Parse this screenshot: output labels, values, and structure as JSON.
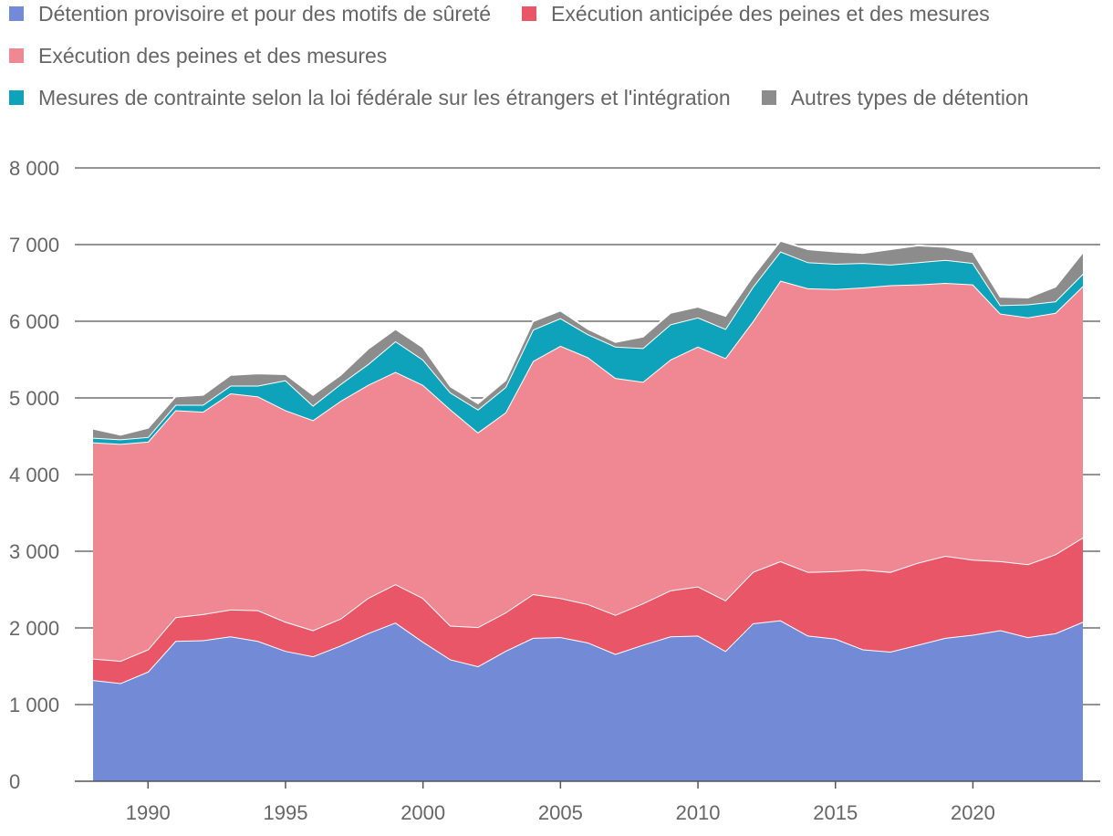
{
  "chart_data": {
    "type": "area",
    "stacked": true,
    "title": "",
    "xlabel": "",
    "ylabel": "",
    "ylim": [
      0,
      8000
    ],
    "yticks": [
      0,
      1000,
      2000,
      3000,
      4000,
      5000,
      6000,
      7000,
      8000
    ],
    "ytick_labels": [
      "0",
      "1 000",
      "2 000",
      "3 000",
      "4 000",
      "5 000",
      "6 000",
      "7 000",
      "8 000"
    ],
    "xlim": [
      1988,
      2024
    ],
    "xticks": [
      1990,
      1995,
      2000,
      2005,
      2010,
      2015,
      2020
    ],
    "xtick_labels": [
      "1990",
      "1995",
      "2000",
      "2005",
      "2010",
      "2015",
      "2020"
    ],
    "x": [
      1988,
      1989,
      1990,
      1991,
      1992,
      1993,
      1994,
      1995,
      1996,
      1997,
      1998,
      1999,
      2000,
      2001,
      2002,
      2003,
      2004,
      2005,
      2006,
      2007,
      2008,
      2009,
      2010,
      2011,
      2012,
      2013,
      2014,
      2015,
      2016,
      2017,
      2018,
      2019,
      2020,
      2021,
      2022,
      2023,
      2024
    ],
    "legend_position": "top",
    "series": [
      {
        "name": "Détention provisoire et pour des motifs de sûreté",
        "color": "#738bd6",
        "values": [
          1320,
          1280,
          1430,
          1830,
          1840,
          1890,
          1830,
          1700,
          1630,
          1770,
          1930,
          2070,
          1820,
          1590,
          1500,
          1700,
          1870,
          1880,
          1810,
          1660,
          1780,
          1890,
          1900,
          1700,
          2060,
          2100,
          1900,
          1860,
          1720,
          1690,
          1780,
          1870,
          1910,
          1970,
          1880,
          1930,
          2080
        ]
      },
      {
        "name": "Exécution anticipée des peines et des mesures",
        "color": "#e85668",
        "values": [
          280,
          290,
          290,
          310,
          340,
          350,
          400,
          380,
          340,
          350,
          460,
          500,
          570,
          440,
          510,
          500,
          570,
          510,
          500,
          510,
          540,
          600,
          640,
          660,
          670,
          770,
          830,
          880,
          1040,
          1040,
          1070,
          1070,
          980,
          900,
          950,
          1030,
          1100
        ]
      },
      {
        "name": "Exécution des peines et des mesures",
        "color": "#ef8893",
        "values": [
          2820,
          2830,
          2710,
          2700,
          2640,
          2820,
          2790,
          2760,
          2740,
          2840,
          2780,
          2770,
          2780,
          2820,
          2540,
          2610,
          3040,
          3290,
          3220,
          3090,
          2890,
          3010,
          3130,
          3160,
          3270,
          3660,
          3700,
          3680,
          3680,
          3740,
          3630,
          3560,
          3590,
          3230,
          3220,
          3150,
          3280
        ]
      },
      {
        "name": "Mesures de contrainte selon la loi fédérale sur les étrangers et l'intégration",
        "color": "#0fa2bb",
        "values": [
          60,
          60,
          60,
          70,
          90,
          100,
          140,
          390,
          190,
          220,
          270,
          400,
          330,
          220,
          300,
          330,
          410,
          360,
          300,
          410,
          440,
          460,
          380,
          380,
          450,
          380,
          340,
          330,
          320,
          270,
          290,
          300,
          280,
          110,
          170,
          150,
          160
        ]
      },
      {
        "name": "Autres types de détention",
        "color": "#8c8c8c",
        "values": [
          120,
          60,
          120,
          110,
          130,
          140,
          160,
          80,
          140,
          120,
          200,
          160,
          160,
          80,
          80,
          90,
          110,
          100,
          70,
          60,
          150,
          150,
          140,
          170,
          140,
          140,
          170,
          160,
          130,
          200,
          220,
          170,
          140,
          110,
          90,
          190,
          280
        ]
      }
    ]
  }
}
